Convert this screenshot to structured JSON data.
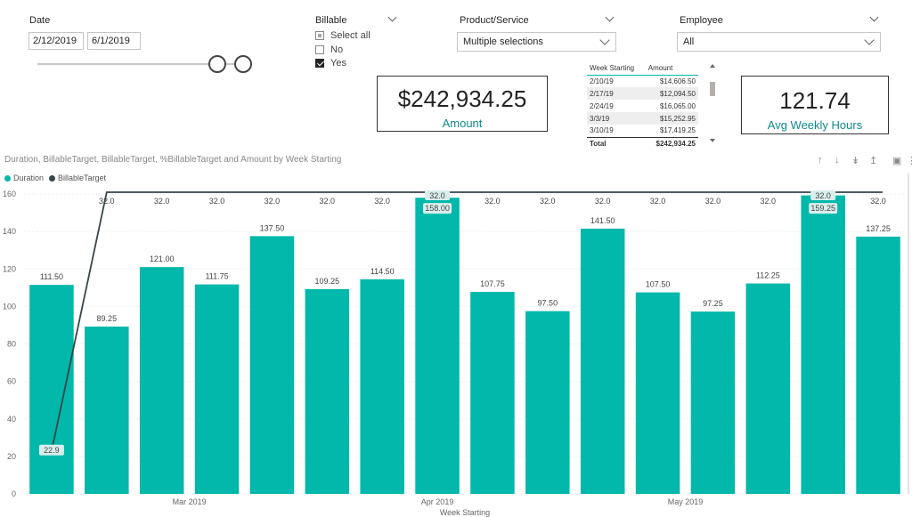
{
  "date_slicer": {
    "title": "Date",
    "start": "2/12/2019",
    "end": "6/1/2019"
  },
  "billable_slicer": {
    "title": "Billable",
    "options": [
      {
        "label": "Select all",
        "state": "partial"
      },
      {
        "label": "No",
        "state": "unchecked"
      },
      {
        "label": "Yes",
        "state": "checked"
      }
    ]
  },
  "product_slicer": {
    "title": "Product/Service",
    "value": "Multiple selections"
  },
  "employee_slicer": {
    "title": "Employee",
    "value": "All"
  },
  "amount_card": {
    "value": "$242,934.25",
    "label": "Amount"
  },
  "weekly_table": {
    "headers": [
      "Week Starting",
      "Amount"
    ],
    "rows": [
      [
        "2/10/19",
        "$14,606.50"
      ],
      [
        "2/17/19",
        "$12,094.50"
      ],
      [
        "2/24/19",
        "$16,065.00"
      ],
      [
        "3/3/19",
        "$15,252.95"
      ],
      [
        "3/10/19",
        "$17,419.25"
      ]
    ],
    "total": [
      "Total",
      "$242,934.25"
    ]
  },
  "hours_card": {
    "value": "121.74",
    "label": "Avg Weekly Hours"
  },
  "visual_toolbar": {
    "icons": [
      "drill-up-icon",
      "drill-down-icon",
      "expand-all-down-icon",
      "drill-mode-icon",
      "focus-mode-icon",
      "more-options-icon"
    ]
  },
  "chart_data": {
    "type": "bar",
    "title": "Duration, BillableTarget, BillableTarget, %BillableTarget and Amount by Week Starting",
    "xlabel": "Week Starting",
    "ylabel": "",
    "ylim": [
      0,
      160
    ],
    "yticks": [
      "0",
      "20",
      "40",
      "60",
      "80",
      "100",
      "120",
      "140",
      "160"
    ],
    "legend_position": "top-left",
    "colors": {
      "duration": "#01b8aa",
      "billable_target": "#374649"
    },
    "x_month_labels": [
      {
        "label": "Mar 2019",
        "index": 2.5
      },
      {
        "label": "Apr 2019",
        "index": 7.0
      },
      {
        "label": "May 2019",
        "index": 11.5
      }
    ],
    "series": [
      {
        "name": "Duration",
        "kind": "bar",
        "values": [
          111.5,
          89.25,
          121.0,
          111.75,
          137.5,
          109.25,
          114.5,
          158.0,
          107.75,
          97.5,
          141.5,
          107.5,
          97.25,
          112.25,
          159.25,
          137.25
        ],
        "labels": [
          "111.50",
          "89.25",
          "121.00",
          "111.75",
          "137.50",
          "109.25",
          "114.50",
          "158.00",
          "107.75",
          "97.50",
          "141.50",
          "107.50",
          "97.25",
          "112.25",
          "159.25",
          "137.25"
        ]
      },
      {
        "name": "BillableTarget",
        "kind": "line",
        "values": [
          22.9,
          32.0,
          32.0,
          32.0,
          32.0,
          32.0,
          32.0,
          32.0,
          32.0,
          32.0,
          32.0,
          32.0,
          32.0,
          32.0,
          32.0,
          32.0
        ],
        "labels": [
          "22.9",
          "32.0",
          "32.0",
          "32.0",
          "32.0",
          "32.0",
          "32.0",
          "32.0",
          "32.0",
          "32.0",
          "32.0",
          "32.0",
          "32.0",
          "32.0",
          "32.0",
          "32.0"
        ]
      }
    ]
  }
}
